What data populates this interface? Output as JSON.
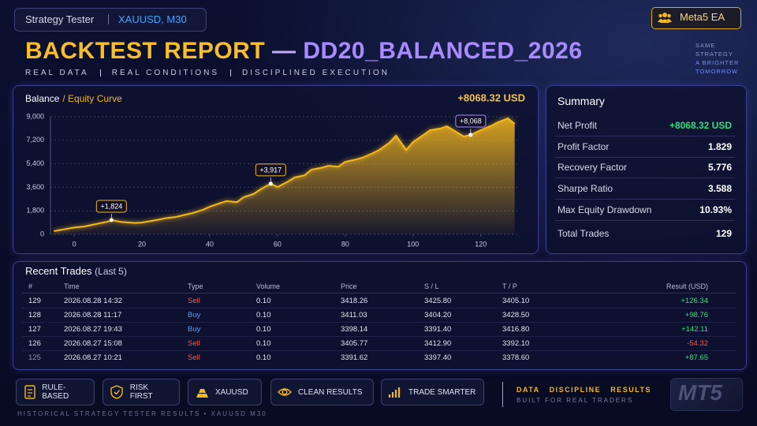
{
  "header": {
    "app": "Strategy Tester",
    "symbol": "XAUUSD, M30",
    "badge": "Meta5 EA",
    "title": "BACKTEST REPORT",
    "title_dash": "—",
    "title_name": "DD20_BALANCED_2026",
    "tagline": [
      "REAL DATA",
      "REAL CONDITIONS",
      "DISCIPLINED EXECUTION"
    ],
    "motto": [
      "SAME",
      "STRATEGY",
      "A BRIGHTER",
      "TOMORROW"
    ]
  },
  "chart_data": {
    "type": "area",
    "title": "Balance",
    "title_accent": "/ Equity Curve",
    "headline": "+8068.32 USD",
    "color": "#f5b81c",
    "x": [
      -6,
      -3,
      0,
      3,
      6,
      10,
      11,
      14,
      18,
      20,
      24,
      27,
      30,
      33,
      35,
      38,
      40,
      43,
      45,
      48,
      50,
      53,
      55,
      58,
      60,
      63,
      65,
      68,
      70,
      73,
      75,
      78,
      80,
      83,
      85,
      88,
      90,
      93,
      95,
      98,
      100,
      103,
      105,
      108,
      110,
      113,
      115,
      117,
      120,
      123,
      125,
      128,
      130
    ],
    "values": [
      240,
      380,
      520,
      600,
      760,
      980,
      1090,
      940,
      870,
      900,
      1080,
      1230,
      1330,
      1510,
      1630,
      1880,
      2110,
      2380,
      2540,
      2460,
      2840,
      3100,
      3440,
      3870,
      3620,
      4020,
      4350,
      4520,
      4950,
      5100,
      5250,
      5180,
      5560,
      5720,
      5860,
      6200,
      6460,
      7000,
      7550,
      6460,
      7070,
      7600,
      7970,
      8100,
      8270,
      7800,
      7490,
      7610,
      7970,
      8300,
      8580,
      8880,
      8460
    ],
    "xlim": [
      -7,
      131
    ],
    "xticks": [
      0,
      20,
      40,
      60,
      80,
      100,
      120
    ],
    "ylim": [
      0,
      9000
    ],
    "yticks": [
      0,
      {
        "value": 1800,
        "label": "1,800"
      },
      {
        "value": 3600,
        "label": "3,600"
      },
      {
        "value": 5400,
        "label": "5,400"
      },
      {
        "value": 7200,
        "label": "7,200"
      },
      {
        "value": 9000,
        "label": "9,000"
      }
    ],
    "grid": true,
    "annotations": [
      {
        "x": 11,
        "y": 1090,
        "label": "+1,824"
      },
      {
        "x": 58,
        "y": 3870,
        "label": "+3,917"
      },
      {
        "x": 117,
        "y": 7610,
        "label": "+8,068"
      }
    ]
  },
  "summary": {
    "title": "Summary",
    "rows": [
      {
        "label": "Net Profit",
        "value": "+8068.32 USD"
      },
      {
        "label": "Profit Factor",
        "value": "1.829"
      },
      {
        "label": "Recovery Factor",
        "value": "5.776"
      },
      {
        "label": "Sharpe Ratio",
        "value": "3.588"
      },
      {
        "label": "Max Equity Drawdown",
        "value": "10.93%"
      },
      {
        "label": "Total Trades",
        "value": "129"
      }
    ]
  },
  "trades": {
    "title": "Recent Trades",
    "subtitle": "(Last 5)",
    "columns": [
      "#",
      "Time",
      "Type",
      "Volume",
      "Price",
      "S / L",
      "T / P",
      "Result (USD)"
    ],
    "rows": [
      [
        "129",
        "2026.08.28 14:32",
        "Sell",
        "0.10",
        "3418.26",
        "3425.80",
        "3405.10",
        "+126.34"
      ],
      [
        "128",
        "2026.08.28 11:17",
        "Buy",
        "0.10",
        "3411.03",
        "3404.20",
        "3428.50",
        "+98.76"
      ],
      [
        "127",
        "2026.08.27 19:43",
        "Buy",
        "0.10",
        "3398.14",
        "3391.40",
        "3416.80",
        "+142.11"
      ],
      [
        "126",
        "2026.08.27 15:08",
        "Sell",
        "0.10",
        "3405.77",
        "3412.90",
        "3392.10",
        "-54.32"
      ],
      [
        "125",
        "2026.08.27 10:21",
        "Sell",
        "0.10",
        "3391.62",
        "3397.40",
        "3378.60",
        "+87.65"
      ]
    ]
  },
  "footer": {
    "badges": [
      "RULE-BASED",
      "RISK FIRST",
      "XAUUSD",
      "CLEAN RESULTS",
      "TRADE SMARTER"
    ],
    "slogan": [
      "DATA",
      "DISCIPLINE",
      "RESULTS"
    ],
    "slogan_sub": "BUILT FOR REAL TRADERS",
    "logo": "MT5",
    "caption": "HISTORICAL STRATEGY TESTER RESULTS • XAUUSD M30"
  }
}
